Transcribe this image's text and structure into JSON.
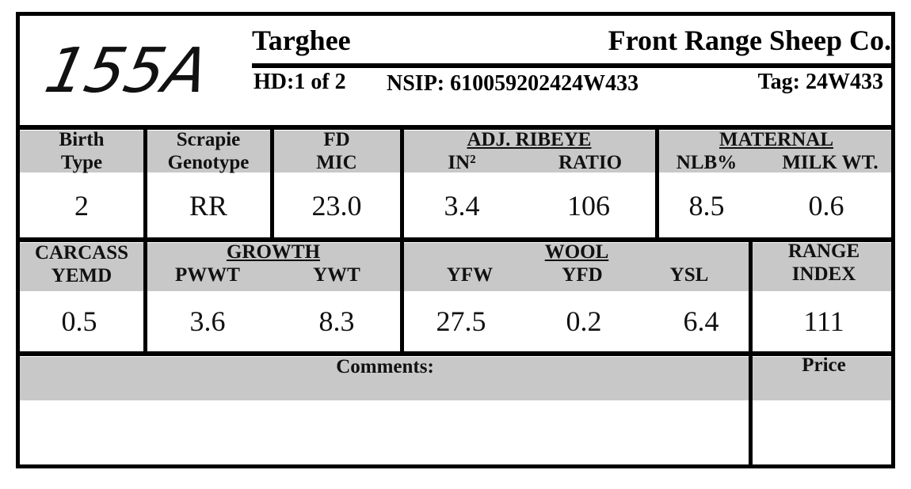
{
  "header": {
    "id": "155A",
    "breed": "Targhee",
    "breeder": "Front Range Sheep Co.",
    "hd": "HD:1 of 2",
    "nsip": "NSIP: 610059202424W433",
    "tag": "Tag: 24W433"
  },
  "row1": {
    "birth_type": {
      "label": [
        "Birth",
        "Type"
      ],
      "value": "2"
    },
    "scrapie": {
      "label": [
        "Scrapie",
        "Genotype"
      ],
      "value": "RR"
    },
    "fd": {
      "label": [
        "FD",
        "MIC"
      ],
      "value": "23.0"
    },
    "ribeye": {
      "group": "ADJ. RIBEYE",
      "in2": {
        "label": "IN²",
        "value": "3.4"
      },
      "ratio": {
        "label": "RATIO",
        "value": "106"
      }
    },
    "maternal": {
      "group": "MATERNAL",
      "nlb": {
        "label": "NLB%",
        "value": "8.5"
      },
      "milk": {
        "label": "MILK WT.",
        "value": "0.6"
      }
    }
  },
  "row2": {
    "carcass": {
      "label": [
        "CARCASS",
        "YEMD"
      ],
      "value": "0.5"
    },
    "growth": {
      "group": "GROWTH",
      "pwwt": {
        "label": "PWWT",
        "value": "3.6"
      },
      "ywt": {
        "label": "YWT",
        "value": "8.3"
      }
    },
    "wool": {
      "group": "WOOL",
      "yfw": {
        "label": "YFW",
        "value": "27.5"
      },
      "yfd": {
        "label": "YFD",
        "value": "0.2"
      },
      "ysl": {
        "label": "YSL",
        "value": "6.4"
      }
    },
    "range": {
      "label": [
        "RANGE",
        "INDEX"
      ],
      "value": "111"
    }
  },
  "row3": {
    "comments": "Comments:",
    "price": "Price"
  }
}
